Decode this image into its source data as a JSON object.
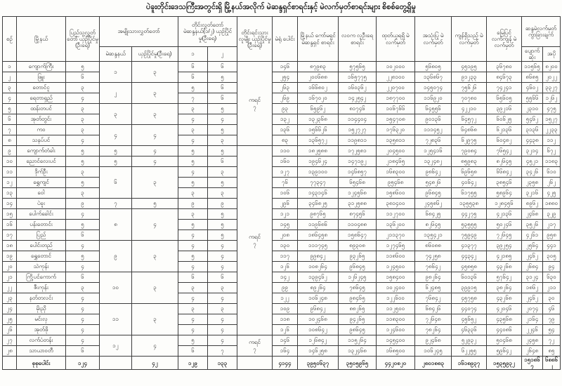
{
  "title": "ပဲခူးတိုင်းဒေသကြီးအတွင်းရှိ မြို့နယ်အလိုက် မဲဆန္ဒရှင်စာရင်းနှင့် မဲလက်မှတ်စာရင်းများ စိစစ်တွေ့ရှိမှု",
  "table": {
    "headers": {
      "serial": "စဉ်",
      "township": "မြို့နယ်",
      "pyithu": "ပြည်သူ့လွှတ်တော် ယှဉ်ပြိုင်မှု (ဦးရေ)",
      "amyotha_group": "အမျိုးသားလွှတ်တော်",
      "amyotha_constituency": "မဲဆန္ဒနယ်",
      "amyotha_compete": "ယှဉ်ပြိုင်မှု(ဦးရေ)",
      "region_group": "တိုင်းလွှတ်တော် မဲဆန္ဒနယ်(၁/၂) ယှဉ်ပြိုင်မှု(ဦးရေ)",
      "region_1": "၁",
      "region_2": "၂",
      "ethnic": "တိုင်းရင်းသား လူမျိုး ယှဉ်ပြိုင်မှု (ဦးရေ)",
      "polling_stations": "မဲရုံ ပေါင်း",
      "commission_list": "မြို့နယ် ကော်မရှင် မဲဆန္ဒရှင် စာရင်း",
      "immigration_list": "လဝက လူဦးရေ စာရင်း",
      "ballots_received": "ထုတ်ယူရရှိ မဲလက်မှတ်",
      "ballots_used": "အသုံးပြု မဲလက်မှတ်",
      "ballots_remaining": "ကျန်ရှိသည့် မဲလက်မှတ်",
      "ballots_on_ground": "မြေပြင် လက်ကျန် မဲလက်မှတ်",
      "diff_group": "ဆန္ဒမဲလက်မှတ် ကွာခြားချက်",
      "diff_missing": "ပျောက်ဆုံး",
      "diff_extra": "အပို"
    },
    "amyotha_merges": [
      {
        "start": 0,
        "span": 2,
        "constituency": "၁",
        "compete": "၃"
      },
      {
        "start": 2,
        "span": 2,
        "constituency": "၂",
        "compete": "၃"
      },
      {
        "start": 4,
        "span": 2,
        "constituency": "၃",
        "compete": "၃"
      },
      {
        "start": 6,
        "span": 2,
        "constituency": "၄",
        "compete": "၄"
      },
      {
        "start": 8,
        "span": 1,
        "constituency": "၅",
        "compete": "၄"
      },
      {
        "start": 9,
        "span": 1,
        "constituency": "၅",
        "compete": "၄"
      },
      {
        "start": 10,
        "span": 3,
        "constituency": "၆",
        "compete": "၃"
      },
      {
        "start": 13,
        "span": 1,
        "constituency": "၇",
        "compete": "၅"
      },
      {
        "start": 14,
        "span": 3,
        "constituency": "၈",
        "compete": "၄"
      },
      {
        "start": 17,
        "span": 3,
        "constituency": "၉",
        "compete": "၃"
      },
      {
        "start": 20,
        "span": 3,
        "constituency": "၁၀",
        "compete": "၃"
      },
      {
        "start": 23,
        "span": 3,
        "constituency": "၁၁",
        "compete": "၃"
      },
      {
        "start": 26,
        "span": 2,
        "constituency": "၁၂",
        "compete": "၄"
      }
    ],
    "ethnic_merges": [
      {
        "start": 0,
        "span": 8,
        "label": "ကရင်",
        "value": "၇"
      },
      {
        "start": 8,
        "span": 18,
        "label": "ကရင်",
        "value": "၇"
      },
      {
        "start": 26,
        "span": 2,
        "label": "ကရင်",
        "value": "၇"
      }
    ],
    "rows": [
      {
        "serial": "၁",
        "township": "ကျောက်ကြီး",
        "pyithu": "၅",
        "region1": "၆",
        "region2": "၆",
        "stations": "၁၄၆",
        "commission": "၈၇၉၈၃",
        "immigration": "၅၇၅၆၅",
        "received": "၁၀၂၀၀၀",
        "used": "၅၆၈၀၅",
        "remaining": "၄၅၁၉၅",
        "on_ground": "၃၆၇၈၀",
        "missing": "၁၁၅၆၅",
        "extra": "၈၂၀၀"
      },
      {
        "serial": "၂",
        "township": "ဖြူး",
        "pyithu": "၆",
        "region1": "၆",
        "region2": "၅",
        "stations": "၂၅၄",
        "commission": "၂၀၀၆၈၈",
        "immigration": "၁၆၅၇၇၅",
        "received": "၂၂၈၁၀၀",
        "used": "၁၃၆၈၆၇",
        "remaining": "၉၁၂၃၃",
        "on_ground": "၈၄၆၇၃",
        "missing": "၈၆၈၅",
        "extra": "၂၀၂၂"
      },
      {
        "serial": "၃",
        "township": "တောင်ငူ",
        "pyithu": "၃",
        "region1": "၅",
        "region2": "၆",
        "stations": "၂၆၃",
        "commission": "၁၆၆၈၀၂",
        "immigration": "၁၆၀၃၆၂",
        "received": "၂၂၀၇၀၀",
        "used": "၁၄၅၀၇၄",
        "remaining": "၇၅၆၂၆",
        "on_ground": "၇၄၂၄၁",
        "missing": "၄၆၀၂",
        "extra": "၃၃၂၇"
      },
      {
        "serial": "၄",
        "township": "ရေတာရှည်",
        "pyithu": "၄",
        "region1": "၇",
        "region2": "၆",
        "stations": "၂၆၉",
        "commission": "၁၆၇၀၂၀",
        "immigration": "၁၄၂၅၄၂",
        "received": "၁၈၇၇၀၀",
        "used": "၁၁၆၉၂၀",
        "remaining": "၇၀၇၈၀",
        "on_ground": "၆၅၆၀၅",
        "missing": "၅၅၆၆",
        "extra": "၁၂၆၂"
      },
      {
        "serial": "၅",
        "township": "ထန်းတပင်",
        "pyithu": "၃",
        "region1": "၃",
        "region2": "၅",
        "stations": "၉၃",
        "commission": "၆၅၉၆၂",
        "immigration": "၈၁၇၄၆",
        "received": "၁၀၆၇၆၆",
        "used": "၆၄၅၅၆",
        "remaining": "၄၂၂၁၀",
        "on_ground": "၃၉၂၁၆",
        "missing": "၂၃၁၀",
        "extra": "၄၇၅"
      },
      {
        "serial": "၆",
        "township": "အုတ်တွင်း",
        "pyithu": "၃",
        "region1": "၄",
        "region2": "၄",
        "stations": "၁၃၂",
        "commission": "၁၃၂၃၆၈",
        "immigration": "၁၁၄၄၀၄",
        "received": "၁၅၄၇၀၈",
        "used": "၉၀၁၃၆",
        "remaining": "၆၄၅၇၂",
        "on_ground": "၆၀၆၂၅",
        "missing": "၅၄၆၂",
        "extra": "၁၅၂၇"
      },
      {
        "serial": "၇",
        "township": "ကဝ",
        "pyithu": "၃",
        "region1": "၃",
        "region2": "၅",
        "stations": "၁၃၆",
        "commission": "၁၅၆၆၂၆",
        "immigration": "၁၅၂၇၂၇",
        "received": "၁၇၆၃၂၀",
        "used": "၁၁၁၄၅၂",
        "remaining": "၆၄၈၆၈",
        "on_ground": "၆၂၁၃၆",
        "missing": "၃၁၃၆",
        "extra": "၂၂၃၃"
      },
      {
        "serial": "၈",
        "township": "သနပ်ပင်",
        "pyithu": "၄",
        "region1": "၄",
        "region2": "၃",
        "stations": "၈၃",
        "commission": "၁၃၆၅၇၂",
        "immigration": "၁၁၉၈၁၁",
        "received": "၁၃၅၈၁၁",
        "used": "၇၂၈၃၆",
        "remaining": "၆၂၉၇၅",
        "on_ground": "၆၀၄၈၂",
        "missing": "၄၄၃၈",
        "extra": "၁၁၂"
      },
      {
        "serial": "၉",
        "township": "ကျောက်တံခါး",
        "pyithu": "၅",
        "region1": "၅",
        "region2": "၅",
        "stations": "၁၁၀",
        "commission": "၁၈၂၅၈၈",
        "immigration": "၁၇၂၅၈၁",
        "received": "၂၀၄၅၀၀",
        "used": "၁၂၅၄၁၆",
        "remaining": "၇၉၀၈၄",
        "on_ground": "၇၆၅၄၂",
        "missing": "၃၂၁၄",
        "extra": "၆၇၂"
      },
      {
        "serial": "၁၀",
        "township": "ညောင်လေးပင်",
        "pyithu": "၅",
        "region1": "၅",
        "region2": "၆",
        "stations": "၁၆၀",
        "commission": "၁၉၄၆၂၄",
        "immigration": "၁၄၇၁၉၂",
        "received": "၂၁၈၄၆၅",
        "used": "၁၃၂၄၈၂",
        "remaining": "၈၅၉၈၃",
        "on_ground": "၈၂၆၄၅",
        "missing": "၄၅၂၁",
        "extra": "၁၁၈၃"
      },
      {
        "serial": "၁၁",
        "township": "ဒိုက်ဦး",
        "pyithu": "၃",
        "region1": "၄",
        "region2": "၃",
        "stations": "၁၂၇",
        "commission": "၁၃၉၁၀၀",
        "immigration": "၁၄၆၈၅၇",
        "received": "၁၆၈၃၀၀",
        "used": "၉၈၆၄၂",
        "remaining": "၆၉၆၅၈",
        "on_ground": "၆၆၈၄၂",
        "missing": "၃၄၂၆",
        "extra": "၆၁၀"
      },
      {
        "serial": "၁၂",
        "township": "ရွှေကျင်",
        "pyithu": "၅",
        "region1": "၅",
        "region2": "၅",
        "stations": "၇၆",
        "commission": "၇၇၃၄၇",
        "immigration": "၆၅၄၆၈",
        "received": "၉၅၄၆၈",
        "used": "၅၄၈၂၆",
        "remaining": "၄၀၆၄၂",
        "on_ground": "၃၈၅၄၆",
        "missing": "၂၃၅၈",
        "extra": "၂၆၂"
      },
      {
        "serial": "၁၃",
        "township": "ဝေါ",
        "pyithu": "၃",
        "region1": "၃",
        "region2": "၃",
        "stations": "၁၀၆",
        "commission": "၁၄၃၁၄၆",
        "immigration": "၁၂၄၅၆၈",
        "received": "၁၅၈၆၀၀",
        "used": "၉၆၈၄၅",
        "remaining": "၆၁၇၅၅",
        "on_ground": "၅၈၉၆၄",
        "missing": "၃၂၁၆",
        "extra": "၄၂၅"
      },
      {
        "serial": "၁၄",
        "township": "ပဲခူး",
        "pyithu": "၉",
        "region1": "၉",
        "region2": "၉",
        "stations": "၂၉၆",
        "commission": "၃၄၆၈၂၅",
        "immigration": "၃၁၂၅၈၈",
        "received": "၃၈၁၄၀၀",
        "used": "၂၄၅၈၆၂",
        "remaining": "၁၃၅၅၃၈",
        "on_ground": "၁၂၈၄၅၆",
        "missing": "၈၉၆၂",
        "extra": "၁၈၈၀"
      },
      {
        "serial": "၁၅",
        "township": "ပေါက်ခေါင်း",
        "pyithu": "၄",
        "region1": "၃",
        "region2": "၅",
        "stations": "၁၂၁",
        "commission": "၉၈၇၆၅",
        "immigration": "၈၇၄၅၆",
        "received": "၁၁၂၇၀၀",
        "used": "၆၈၄၂၅",
        "remaining": "၄၄၂၇၅",
        "on_ground": "၄၂၁၃၆",
        "missing": "၂၄၆၈",
        "extra": "၃၂၉"
      },
      {
        "serial": "၁၆",
        "township": "ပန်းတောင်း",
        "pyithu": "၅",
        "region1": "၅",
        "region2": "၅",
        "stations": "၁၄၅",
        "commission": "၁၁၉၆၈၆",
        "immigration": "၁၁၀၄၈၈",
        "received": "၁၃၆၂၀၀",
        "used": "၈၂၆၄၅",
        "remaining": "၅၃၅၅၅",
        "on_ground": "၅၀၂၄၆",
        "missing": "၃၅၂၆",
        "extra": "၂၁၇"
      },
      {
        "serial": "၁၇",
        "township": "ပြည်",
        "pyithu": "၆",
        "region1": "၄",
        "region2": "၅",
        "stations": "၂၀၈",
        "commission": "၁၈၆၄၅၈",
        "immigration": "၁၅၈၆၄၇",
        "received": "၂၁၁၃၇၀",
        "used": "၁၃၅၄၂၁",
        "remaining": "၇၅၉၄၉",
        "on_ground": "၇၂၆၄၅",
        "missing": "၄၂၆၁",
        "extra": "၉၅၈"
      },
      {
        "serial": "၁၈",
        "township": "ပေါင်းတည်",
        "pyithu": "၄",
        "region1": "၄",
        "region2": "၄",
        "stations": "၁၃၀",
        "commission": "၁၁၁၇၄၅",
        "immigration": "၈၉၃၀၈",
        "received": "၁၂၇၄၆၅",
        "used": "၈၆၀၈၈",
        "remaining": "၄၁၃၇၇",
        "on_ground": "၃၉၂၅၄",
        "missing": "၂၅၆၄",
        "extra": "၄၄၁"
      },
      {
        "serial": "၁၉",
        "township": "ရွှေတောင်",
        "pyithu": "၅",
        "region1": "၅",
        "region2": "၄",
        "stations": "၁၁၇",
        "commission": "၉၉၈၄၂",
        "immigration": "၉၃၂၆၅",
        "received": "၁၁၈၆၀၀",
        "used": "၇၄၂၅၈",
        "remaining": "၄၄၃၄၂",
        "on_ground": "၄၂၁၈၅",
        "missing": "၂၄၆၂",
        "extra": "၃၀၅"
      },
      {
        "serial": "၂၀",
        "township": "သဲကုန်း",
        "pyithu": "၄",
        "region1": "၄",
        "region2": "၄",
        "stations": "၁၂၆",
        "commission": "၁၀၈၂၆၄",
        "immigration": "၉၆၈၄၅",
        "received": "၁၂၄၅၀၀",
        "used": "၇၈၆၄၂",
        "remaining": "၄၅၈၅၈",
        "on_ground": "၄၃၂၆၈",
        "missing": "၂၆၈၄",
        "extra": "၉၄"
      },
      {
        "serial": "၂၁",
        "township": "ကြို့ပင်ကောက်",
        "pyithu": "၆",
        "region1": "၆",
        "region2": "၆",
        "stations": "၁၄၂",
        "commission": "၁၃၉၄၆၂",
        "immigration": "၁၂၆၂၄၅",
        "received": "၁၅၈၄၀၀",
        "used": "၉၈၂၆၄",
        "remaining": "၆၀၁၃၆",
        "on_ground": "၅၇၆၄၂",
        "missing": "၃၁၂၄",
        "extra": "၆၃၀"
      },
      {
        "serial": "၂၂",
        "township": "ဇီးကုန်း",
        "pyithu": "၃",
        "region1": "၃",
        "region2": "၃",
        "stations": "၉၉",
        "commission": "၈၉၂၆၄",
        "immigration": "၇၈၆၄၅",
        "received": "၁၀၂၄၀၀",
        "used": "၆၂၄၈၅",
        "remaining": "၃၉၉၁၅",
        "on_ground": "၃၈၂၆၄",
        "missing": "၁၈၆၂",
        "extra": "၂၁၁"
      },
      {
        "serial": "၂၃",
        "township": "နတ်တလင်း",
        "pyithu": "၄",
        "region1": "၄",
        "region2": "၄",
        "stations": "၁၂၂",
        "commission": "၁၀၆၂၄၈",
        "immigration": "၉၈၄၆၅",
        "received": "၁၂၂၆၀၀",
        "used": "၇၆၈၄၂",
        "remaining": "၄၅၇၅၈",
        "on_ground": "၄၃၂၆၈",
        "missing": "၂၄၆၂",
        "extra": "၃၀"
      },
      {
        "serial": "၂၄",
        "township": "မိုးညို",
        "pyithu": "၄",
        "region1": "၃",
        "region2": "၃",
        "stations": "၁၀၉",
        "commission": "၉၆၈၄၂",
        "immigration": "၈၈၂၆၅",
        "received": "၁၁၂၅၀၀",
        "used": "၆၈၄၂၆",
        "remaining": "၄၄၀၇၄",
        "on_ground": "၄၂၀၄၆",
        "missing": "၂၀၇၄",
        "extra": "၄၆"
      },
      {
        "serial": "၂၅",
        "township": "မင်းလှ",
        "pyithu": "၄",
        "region1": "၄",
        "region2": "၄",
        "stations": "၁၁၈",
        "commission": "၁၀၂၄၆၈",
        "immigration": "၉၄၂၆၅",
        "received": "၁၁၈၃၀၀",
        "used": "၇၂၆၄၈",
        "remaining": "၄၅၆၅၂",
        "on_ground": "၄၃၅၆၈",
        "missing": "၂၁၆၄",
        "extra": "၇၉"
      },
      {
        "serial": "၂၆",
        "township": "အုတ်ဖို",
        "pyithu": "၄",
        "region1": "၄",
        "region2": "၄",
        "stations": "၁၂၆",
        "commission": "၁၀၈၆၄၂",
        "immigration": "၉၈၆၄၅",
        "received": "၁၂၄၆၀၀",
        "used": "၇၈၂၆၄",
        "remaining": "၄၆၃၃၆",
        "on_ground": "၄၄၀၈၆",
        "missing": "၂၂၄၆",
        "extra": "၅၄"
      },
      {
        "serial": "၂၇",
        "township": "လက်ပံတန်း",
        "pyithu": "၄",
        "region1": "၅",
        "region2": "၄",
        "stations": "၁၄၆",
        "commission": "၁၂၆၈၄၂",
        "immigration": "၁၁၅၂၆၄",
        "received": "၁၄၅၄၀၀",
        "used": "၉၂၄၆၈",
        "remaining": "၅၂၉၃၂",
        "on_ground": "၅၀၄၆၈",
        "missing": "၂၄၅၈",
        "extra": "၇၂"
      },
      {
        "serial": "၂၈",
        "township": "သာယာဝတီ",
        "pyithu": "၆",
        "region1": "၆",
        "region2": "၇",
        "stations": "၁၆၄",
        "commission": "၁၄၆၂၅၈",
        "immigration": "၁၃၂၄၆၈",
        "received": "၁၆၈၅၀၀",
        "used": "၁၀၆၂၄၅",
        "remaining": "၆၂၂၅၅",
        "on_ground": "၅၉၆၄၂",
        "missing": "၂၆၄၈",
        "extra": "၈၅"
      }
    ],
    "total": {
      "label": "စုစုပေါင်း",
      "pyithu": "၁၂၄",
      "amyotha_constituency": "",
      "amyotha_compete": "၄၂",
      "region1": "၁၂၉",
      "region2": "၁၃၃",
      "ethnic": "",
      "stations": "၄၁၄၄",
      "commission": "၃၉၅၀၆၃၇",
      "immigration": "၃၅၀၅၉၆၅",
      "received": "၄၄၂၀၈၂၀",
      "used": "၂၈၀၁၈၈၃",
      "remaining": "၁၆၁၈၉၃၇",
      "on_ground": "၁၅၃၅၉၃၂",
      "missing": "၁၅၁၈၆၇",
      "extra": "၆၈၈၆၂"
    }
  }
}
